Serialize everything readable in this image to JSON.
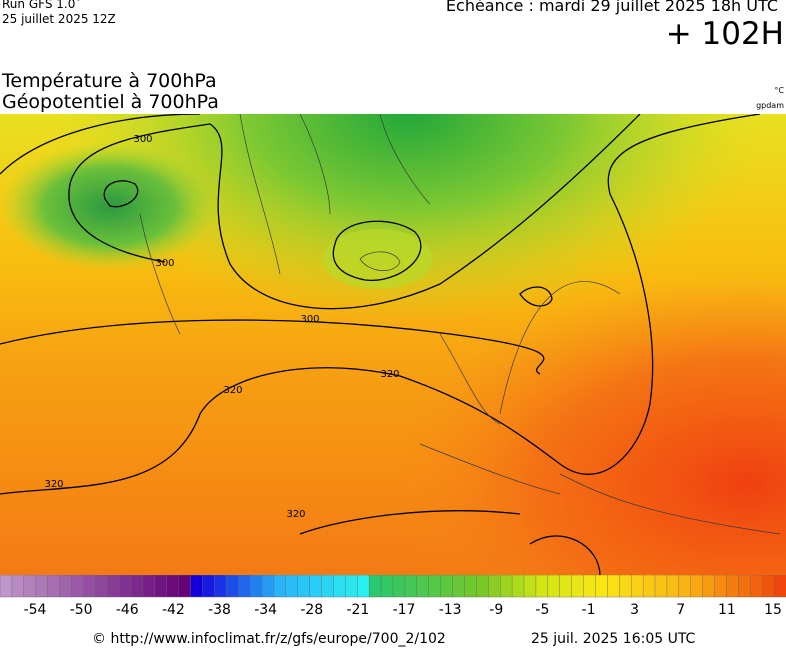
{
  "header": {
    "run": "Run GFS 1.0˚",
    "date": "25 juillet 2025 12Z",
    "echeance": "Echéance : mardi 29 juillet 2025 18h UTC",
    "lead": "+ 102H"
  },
  "titles": [
    "Température à 700hPa",
    "Géopotentiel à 700hPa"
  ],
  "units": [
    "°C",
    "gpdam"
  ],
  "contour_labels": [
    "300",
    "300",
    "300",
    "320",
    "320",
    "320",
    "320"
  ],
  "colorbar": {
    "ticks": [
      -54,
      -50,
      -46,
      -42,
      -38,
      -34,
      -28,
      -21,
      -17,
      -13,
      -9,
      -5,
      -1,
      3,
      7,
      11,
      15
    ]
  },
  "footer": {
    "url": "© http://www.infoclimat.fr/z/gfs/europe/700_2/102",
    "timestamp": "25 juil. 2025 16:05 UTC"
  }
}
